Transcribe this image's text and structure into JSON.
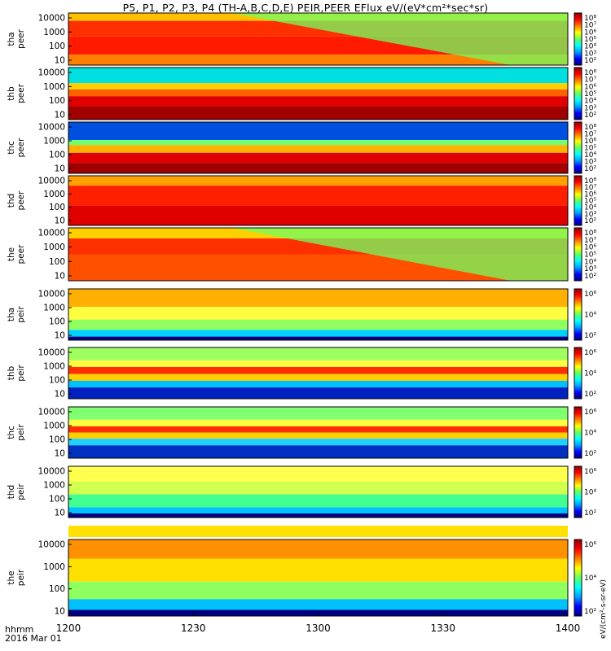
{
  "title": "P5, P1, P2, P3, P4 (TH-A,B,C,D,E) PEIR,PEER EFlux eV/(eV*cm²*sec*sr)",
  "time_axis": {
    "ticks": [
      "1200",
      "1230",
      "1300",
      "1330",
      "1400"
    ],
    "row_label": "hhmm",
    "date_label": "2016 Mar 01"
  },
  "y_ticks": [
    "10000",
    "1000",
    "100",
    "10"
  ],
  "colorbar_unit": "eV/(cm²-s-sr-eV)",
  "panels": [
    {
      "label": "tha\npeer",
      "probe": "tha",
      "species": "peer"
    },
    {
      "label": "thb\npeer",
      "probe": "thb",
      "species": "peer"
    },
    {
      "label": "thc\npeer",
      "probe": "thc",
      "species": "peer"
    },
    {
      "label": "thd\npeer",
      "probe": "thd",
      "species": "peer"
    },
    {
      "label": "the\npeer",
      "probe": "the",
      "species": "peer"
    },
    {
      "label": "tha\npeir",
      "probe": "tha",
      "species": "peir"
    },
    {
      "label": "thb\npeir",
      "probe": "thb",
      "species": "peir"
    },
    {
      "label": "thc\npeir",
      "probe": "thc",
      "species": "peir"
    },
    {
      "label": "thd\npeir",
      "probe": "thd",
      "species": "peir"
    },
    {
      "label": "the\npeir",
      "probe": "the",
      "species": "peir"
    }
  ],
  "chart_data": {
    "type": "heatmap",
    "title": "P5, P1, P2, P3, P4 (TH-A,B,C,D,E) PEIR,PEER EFlux eV/(eV*cm²*sec*sr)",
    "x_range": [
      "12:00",
      "14:00"
    ],
    "y_range_eV": [
      7,
      25000
    ],
    "y_scale": "log",
    "colorbar_scale": "log",
    "colorscale": [
      "#000080",
      "#0000ff",
      "#00a0ff",
      "#00ffff",
      "#60ff60",
      "#ffff00",
      "#ff8000",
      "#ff0000",
      "#900000"
    ],
    "colorbar_ticks_peer": [
      "10⁸",
      "10⁷",
      "10⁶",
      "10⁵",
      "10⁴",
      "10³",
      "10²"
    ],
    "colorbar_ticks_peir": [
      "10⁶",
      "10⁴",
      "10²"
    ]
  }
}
